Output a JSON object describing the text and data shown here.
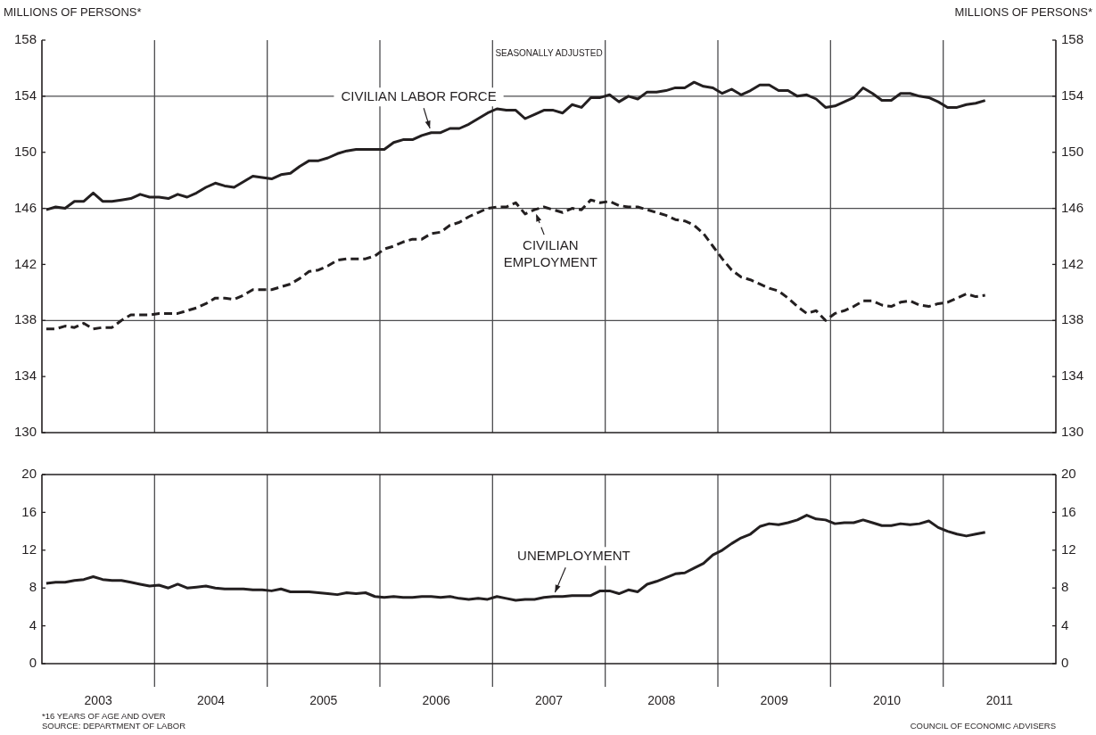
{
  "chart_data": [
    {
      "type": "line",
      "title": "SEASONALLY ADJUSTED",
      "ylabel": "MILLIONS OF PERSONS*",
      "y2label": "MILLIONS OF PERSONS*",
      "marker": "none",
      "tick_labels": "y",
      "x": [
        "2003-01-15",
        "2003-02-15",
        "2003-03-15",
        "2003-04-15",
        "2003-05-15",
        "2003-06-15",
        "2003-07-15",
        "2003-08-15",
        "2003-09-15",
        "2003-10-15",
        "2003-11-15",
        "2003-12-15",
        "2004-01-15",
        "2004-02-15",
        "2004-03-15",
        "2004-04-15",
        "2004-05-15",
        "2004-06-15",
        "2004-07-15",
        "2004-08-15",
        "2004-09-15",
        "2004-10-15",
        "2004-11-15",
        "2004-12-15",
        "2005-01-15",
        "2005-02-15",
        "2005-03-15",
        "2005-04-15",
        "2005-05-15",
        "2005-06-15",
        "2005-07-15",
        "2005-08-15",
        "2005-09-15",
        "2005-10-15",
        "2005-11-15",
        "2005-12-15",
        "2006-01-15",
        "2006-02-15",
        "2006-03-15",
        "2006-04-15",
        "2006-05-15",
        "2006-06-15",
        "2006-07-15",
        "2006-08-15",
        "2006-09-15",
        "2006-10-15",
        "2006-11-15",
        "2006-12-15",
        "2007-01-15",
        "2007-02-15",
        "2007-03-15",
        "2007-04-15",
        "2007-05-15",
        "2007-06-15",
        "2007-07-15",
        "2007-08-15",
        "2007-09-15",
        "2007-10-15",
        "2007-11-15",
        "2007-12-15",
        "2008-01-15",
        "2008-02-15",
        "2008-03-15",
        "2008-04-15",
        "2008-05-15",
        "2008-06-15",
        "2008-07-15",
        "2008-08-15",
        "2008-09-15",
        "2008-10-15",
        "2008-11-15",
        "2008-12-15",
        "2009-01-15",
        "2009-02-15",
        "2009-03-15",
        "2009-04-15",
        "2009-05-15",
        "2009-06-15",
        "2009-07-15",
        "2009-08-15",
        "2009-09-15",
        "2009-10-15",
        "2009-11-15",
        "2009-12-15",
        "2010-01-15",
        "2010-02-15",
        "2010-03-15",
        "2010-04-15",
        "2010-05-15",
        "2010-06-15",
        "2010-07-15",
        "2010-08-15",
        "2010-09-15",
        "2010-10-15",
        "2010-11-15",
        "2010-12-15",
        "2011-01-15",
        "2011-02-15",
        "2011-03-15",
        "2011-04-15",
        "2011-05-15"
      ],
      "xlim": [
        "2003-01-01",
        "2012-01-01"
      ],
      "ylim": [
        130,
        158
      ],
      "yticks": [
        130,
        134,
        138,
        142,
        146,
        150,
        154,
        158
      ],
      "y2lim": [
        130,
        158
      ],
      "y2ticks": [
        130,
        134,
        138,
        142,
        146,
        150,
        154,
        158
      ],
      "series": [
        {
          "name": "CIVILIAN LABOR FORCE",
          "color": "#231f20",
          "line_style": "solid",
          "values": [
            145.9,
            146.1,
            146.0,
            146.5,
            146.5,
            147.1,
            146.5,
            146.5,
            146.6,
            146.7,
            147.0,
            146.8,
            146.8,
            146.7,
            147.0,
            146.8,
            147.1,
            147.5,
            147.8,
            147.6,
            147.5,
            147.9,
            148.3,
            148.2,
            148.1,
            148.4,
            148.5,
            149.0,
            149.4,
            149.4,
            149.6,
            149.9,
            150.1,
            150.2,
            150.2,
            150.2,
            150.2,
            150.7,
            150.9,
            150.9,
            151.2,
            151.4,
            151.4,
            151.7,
            151.7,
            152.0,
            152.4,
            152.8,
            153.1,
            153.0,
            153.0,
            152.4,
            152.7,
            153.0,
            153.0,
            152.8,
            153.4,
            153.2,
            153.9,
            153.9,
            154.1,
            153.6,
            154.0,
            153.8,
            154.3,
            154.3,
            154.4,
            154.6,
            154.6,
            155.0,
            154.7,
            154.6,
            154.2,
            154.5,
            154.1,
            154.4,
            154.8,
            154.8,
            154.4,
            154.4,
            154.0,
            154.1,
            153.8,
            153.2,
            153.3,
            153.6,
            153.9,
            154.6,
            154.2,
            153.7,
            153.7,
            154.2,
            154.2,
            154.0,
            153.9,
            153.6,
            153.2,
            153.2,
            153.4,
            153.5,
            153.7
          ]
        },
        {
          "name": "CIVILIAN EMPLOYMENT",
          "color": "#231f20",
          "line_style": "dashed",
          "values": [
            137.4,
            137.4,
            137.6,
            137.5,
            137.8,
            137.4,
            137.5,
            137.5,
            138.0,
            138.4,
            138.4,
            138.4,
            138.5,
            138.5,
            138.5,
            138.7,
            138.9,
            139.2,
            139.6,
            139.6,
            139.5,
            139.8,
            140.2,
            140.2,
            140.2,
            140.4,
            140.6,
            141.0,
            141.5,
            141.6,
            141.9,
            142.3,
            142.4,
            142.4,
            142.4,
            142.6,
            143.1,
            143.3,
            143.6,
            143.8,
            143.8,
            144.2,
            144.3,
            144.8,
            145.0,
            145.4,
            145.7,
            146.0,
            146.1,
            146.1,
            146.4,
            145.6,
            145.9,
            146.1,
            145.9,
            145.7,
            146.0,
            145.9,
            146.6,
            146.4,
            146.5,
            146.2,
            146.1,
            146.1,
            145.9,
            145.7,
            145.5,
            145.2,
            145.1,
            144.8,
            144.2,
            143.3,
            142.4,
            141.6,
            141.1,
            140.9,
            140.6,
            140.3,
            140.1,
            139.6,
            139.0,
            138.5,
            138.7,
            138.0,
            138.5,
            138.7,
            139.0,
            139.4,
            139.4,
            139.1,
            139.0,
            139.3,
            139.4,
            139.1,
            139.0,
            139.2,
            139.3,
            139.6,
            139.9,
            139.7,
            139.8
          ]
        }
      ],
      "ref_lines": [
        {
          "axis": "y",
          "value": 138
        },
        {
          "axis": "y",
          "value": 146
        },
        {
          "axis": "y",
          "value": 154
        },
        {
          "axis": "x",
          "value": "2004-01-01"
        },
        {
          "axis": "x",
          "value": "2005-01-01"
        },
        {
          "axis": "x",
          "value": "2006-01-01"
        },
        {
          "axis": "x",
          "value": "2007-01-01"
        },
        {
          "axis": "x",
          "value": "2008-01-01"
        },
        {
          "axis": "x",
          "value": "2009-01-01"
        },
        {
          "axis": "x",
          "value": "2010-01-01"
        },
        {
          "axis": "x",
          "value": "2011-01-01"
        }
      ]
    },
    {
      "type": "line",
      "marker": "none",
      "x": [
        "2003-01-15",
        "2003-02-15",
        "2003-03-15",
        "2003-04-15",
        "2003-05-15",
        "2003-06-15",
        "2003-07-15",
        "2003-08-15",
        "2003-09-15",
        "2003-10-15",
        "2003-11-15",
        "2003-12-15",
        "2004-01-15",
        "2004-02-15",
        "2004-03-15",
        "2004-04-15",
        "2004-05-15",
        "2004-06-15",
        "2004-07-15",
        "2004-08-15",
        "2004-09-15",
        "2004-10-15",
        "2004-11-15",
        "2004-12-15",
        "2005-01-15",
        "2005-02-15",
        "2005-03-15",
        "2005-04-15",
        "2005-05-15",
        "2005-06-15",
        "2005-07-15",
        "2005-08-15",
        "2005-09-15",
        "2005-10-15",
        "2005-11-15",
        "2005-12-15",
        "2006-01-15",
        "2006-02-15",
        "2006-03-15",
        "2006-04-15",
        "2006-05-15",
        "2006-06-15",
        "2006-07-15",
        "2006-08-15",
        "2006-09-15",
        "2006-10-15",
        "2006-11-15",
        "2006-12-15",
        "2007-01-15",
        "2007-02-15",
        "2007-03-15",
        "2007-04-15",
        "2007-05-15",
        "2007-06-15",
        "2007-07-15",
        "2007-08-15",
        "2007-09-15",
        "2007-10-15",
        "2007-11-15",
        "2007-12-15",
        "2008-01-15",
        "2008-02-15",
        "2008-03-15",
        "2008-04-15",
        "2008-05-15",
        "2008-06-15",
        "2008-07-15",
        "2008-08-15",
        "2008-09-15",
        "2008-10-15",
        "2008-11-15",
        "2008-12-15",
        "2009-01-15",
        "2009-02-15",
        "2009-03-15",
        "2009-04-15",
        "2009-05-15",
        "2009-06-15",
        "2009-07-15",
        "2009-08-15",
        "2009-09-15",
        "2009-10-15",
        "2009-11-15",
        "2009-12-15",
        "2010-01-15",
        "2010-02-15",
        "2010-03-15",
        "2010-04-15",
        "2010-05-15",
        "2010-06-15",
        "2010-07-15",
        "2010-08-15",
        "2010-09-15",
        "2010-10-15",
        "2010-11-15",
        "2010-12-15",
        "2011-01-15",
        "2011-02-15",
        "2011-03-15",
        "2011-04-15",
        "2011-05-15"
      ],
      "xlim": [
        "2003-01-01",
        "2012-01-01"
      ],
      "xticks": [
        {
          "value": "2003-07-01",
          "label": "2003"
        },
        {
          "value": "2004-07-01",
          "label": "2004"
        },
        {
          "value": "2005-07-01",
          "label": "2005"
        },
        {
          "value": "2006-07-01",
          "label": "2006"
        },
        {
          "value": "2007-07-01",
          "label": "2007"
        },
        {
          "value": "2008-07-01",
          "label": "2008"
        },
        {
          "value": "2009-07-01",
          "label": "2009"
        },
        {
          "value": "2010-07-01",
          "label": "2010"
        },
        {
          "value": "2011-07-01",
          "label": "2011"
        }
      ],
      "ylim": [
        0,
        20
      ],
      "yticks": [
        0,
        4,
        8,
        12,
        16,
        20
      ],
      "y2lim": [
        0,
        20
      ],
      "y2ticks": [
        0,
        4,
        8,
        12,
        16,
        20
      ],
      "series": [
        {
          "name": "UNEMPLOYMENT",
          "color": "#231f20",
          "line_style": "solid",
          "values": [
            8.5,
            8.6,
            8.6,
            8.8,
            8.9,
            9.2,
            8.9,
            8.8,
            8.8,
            8.6,
            8.4,
            8.2,
            8.3,
            8.0,
            8.4,
            8.0,
            8.1,
            8.2,
            8.0,
            7.9,
            7.9,
            7.9,
            7.8,
            7.8,
            7.7,
            7.9,
            7.6,
            7.6,
            7.6,
            7.5,
            7.4,
            7.3,
            7.5,
            7.4,
            7.5,
            7.1,
            7.0,
            7.1,
            7.0,
            7.0,
            7.1,
            7.1,
            7.0,
            7.1,
            6.9,
            6.8,
            6.9,
            6.8,
            7.1,
            6.9,
            6.7,
            6.8,
            6.8,
            7.0,
            7.1,
            7.1,
            7.2,
            7.2,
            7.2,
            7.7,
            7.7,
            7.4,
            7.8,
            7.6,
            8.4,
            8.7,
            9.1,
            9.5,
            9.6,
            10.1,
            10.6,
            11.5,
            12.0,
            12.7,
            13.3,
            13.7,
            14.5,
            14.8,
            14.7,
            14.9,
            15.2,
            15.7,
            15.3,
            15.2,
            14.8,
            14.9,
            14.9,
            15.2,
            14.9,
            14.6,
            14.6,
            14.8,
            14.7,
            14.8,
            15.1,
            14.4,
            14.0,
            13.7,
            13.5,
            13.7,
            13.9
          ]
        }
      ],
      "ref_lines": [
        {
          "axis": "x",
          "value": "2004-01-01"
        },
        {
          "axis": "x",
          "value": "2005-01-01"
        },
        {
          "axis": "x",
          "value": "2006-01-01"
        },
        {
          "axis": "x",
          "value": "2007-01-01"
        },
        {
          "axis": "x",
          "value": "2008-01-01"
        },
        {
          "axis": "x",
          "value": "2009-01-01"
        },
        {
          "axis": "x",
          "value": "2010-01-01"
        },
        {
          "axis": "x",
          "value": "2011-01-01"
        }
      ],
      "annotations": [
        "*16 YEARS OF AGE AND OVER",
        "SOURCE: DEPARTMENT OF LABOR",
        "COUNCIL OF ECONOMIC ADVISERS"
      ]
    }
  ]
}
